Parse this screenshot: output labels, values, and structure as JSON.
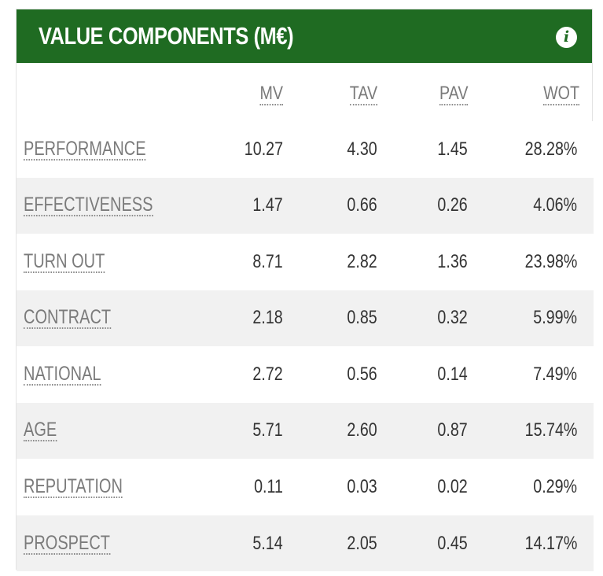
{
  "header": {
    "title": "VALUE COMPONENTS (M€)",
    "info_icon": "info-icon",
    "colors": {
      "background": "#1f6b22",
      "text": "#ffffff"
    }
  },
  "columns": [
    "MV",
    "TAV",
    "PAV",
    "WOT"
  ],
  "rows": [
    {
      "label": "PERFORMANCE",
      "mv": "10.27",
      "tav": "4.30",
      "pav": "1.45",
      "wot": "28.28%"
    },
    {
      "label": "EFFECTIVENESS",
      "mv": "1.47",
      "tav": "0.66",
      "pav": "0.26",
      "wot": "4.06%"
    },
    {
      "label": "TURN OUT",
      "mv": "8.71",
      "tav": "2.82",
      "pav": "1.36",
      "wot": "23.98%"
    },
    {
      "label": "CONTRACT",
      "mv": "2.18",
      "tav": "0.85",
      "pav": "0.32",
      "wot": "5.99%"
    },
    {
      "label": "NATIONAL",
      "mv": "2.72",
      "tav": "0.56",
      "pav": "0.14",
      "wot": "7.49%"
    },
    {
      "label": "AGE",
      "mv": "5.71",
      "tav": "2.60",
      "pav": "0.87",
      "wot": "15.74%"
    },
    {
      "label": "REPUTATION",
      "mv": "0.11",
      "tav": "0.03",
      "pav": "0.02",
      "wot": "0.29%"
    },
    {
      "label": "PROSPECT",
      "mv": "5.14",
      "tav": "2.05",
      "pav": "0.45",
      "wot": "14.17%"
    }
  ]
}
